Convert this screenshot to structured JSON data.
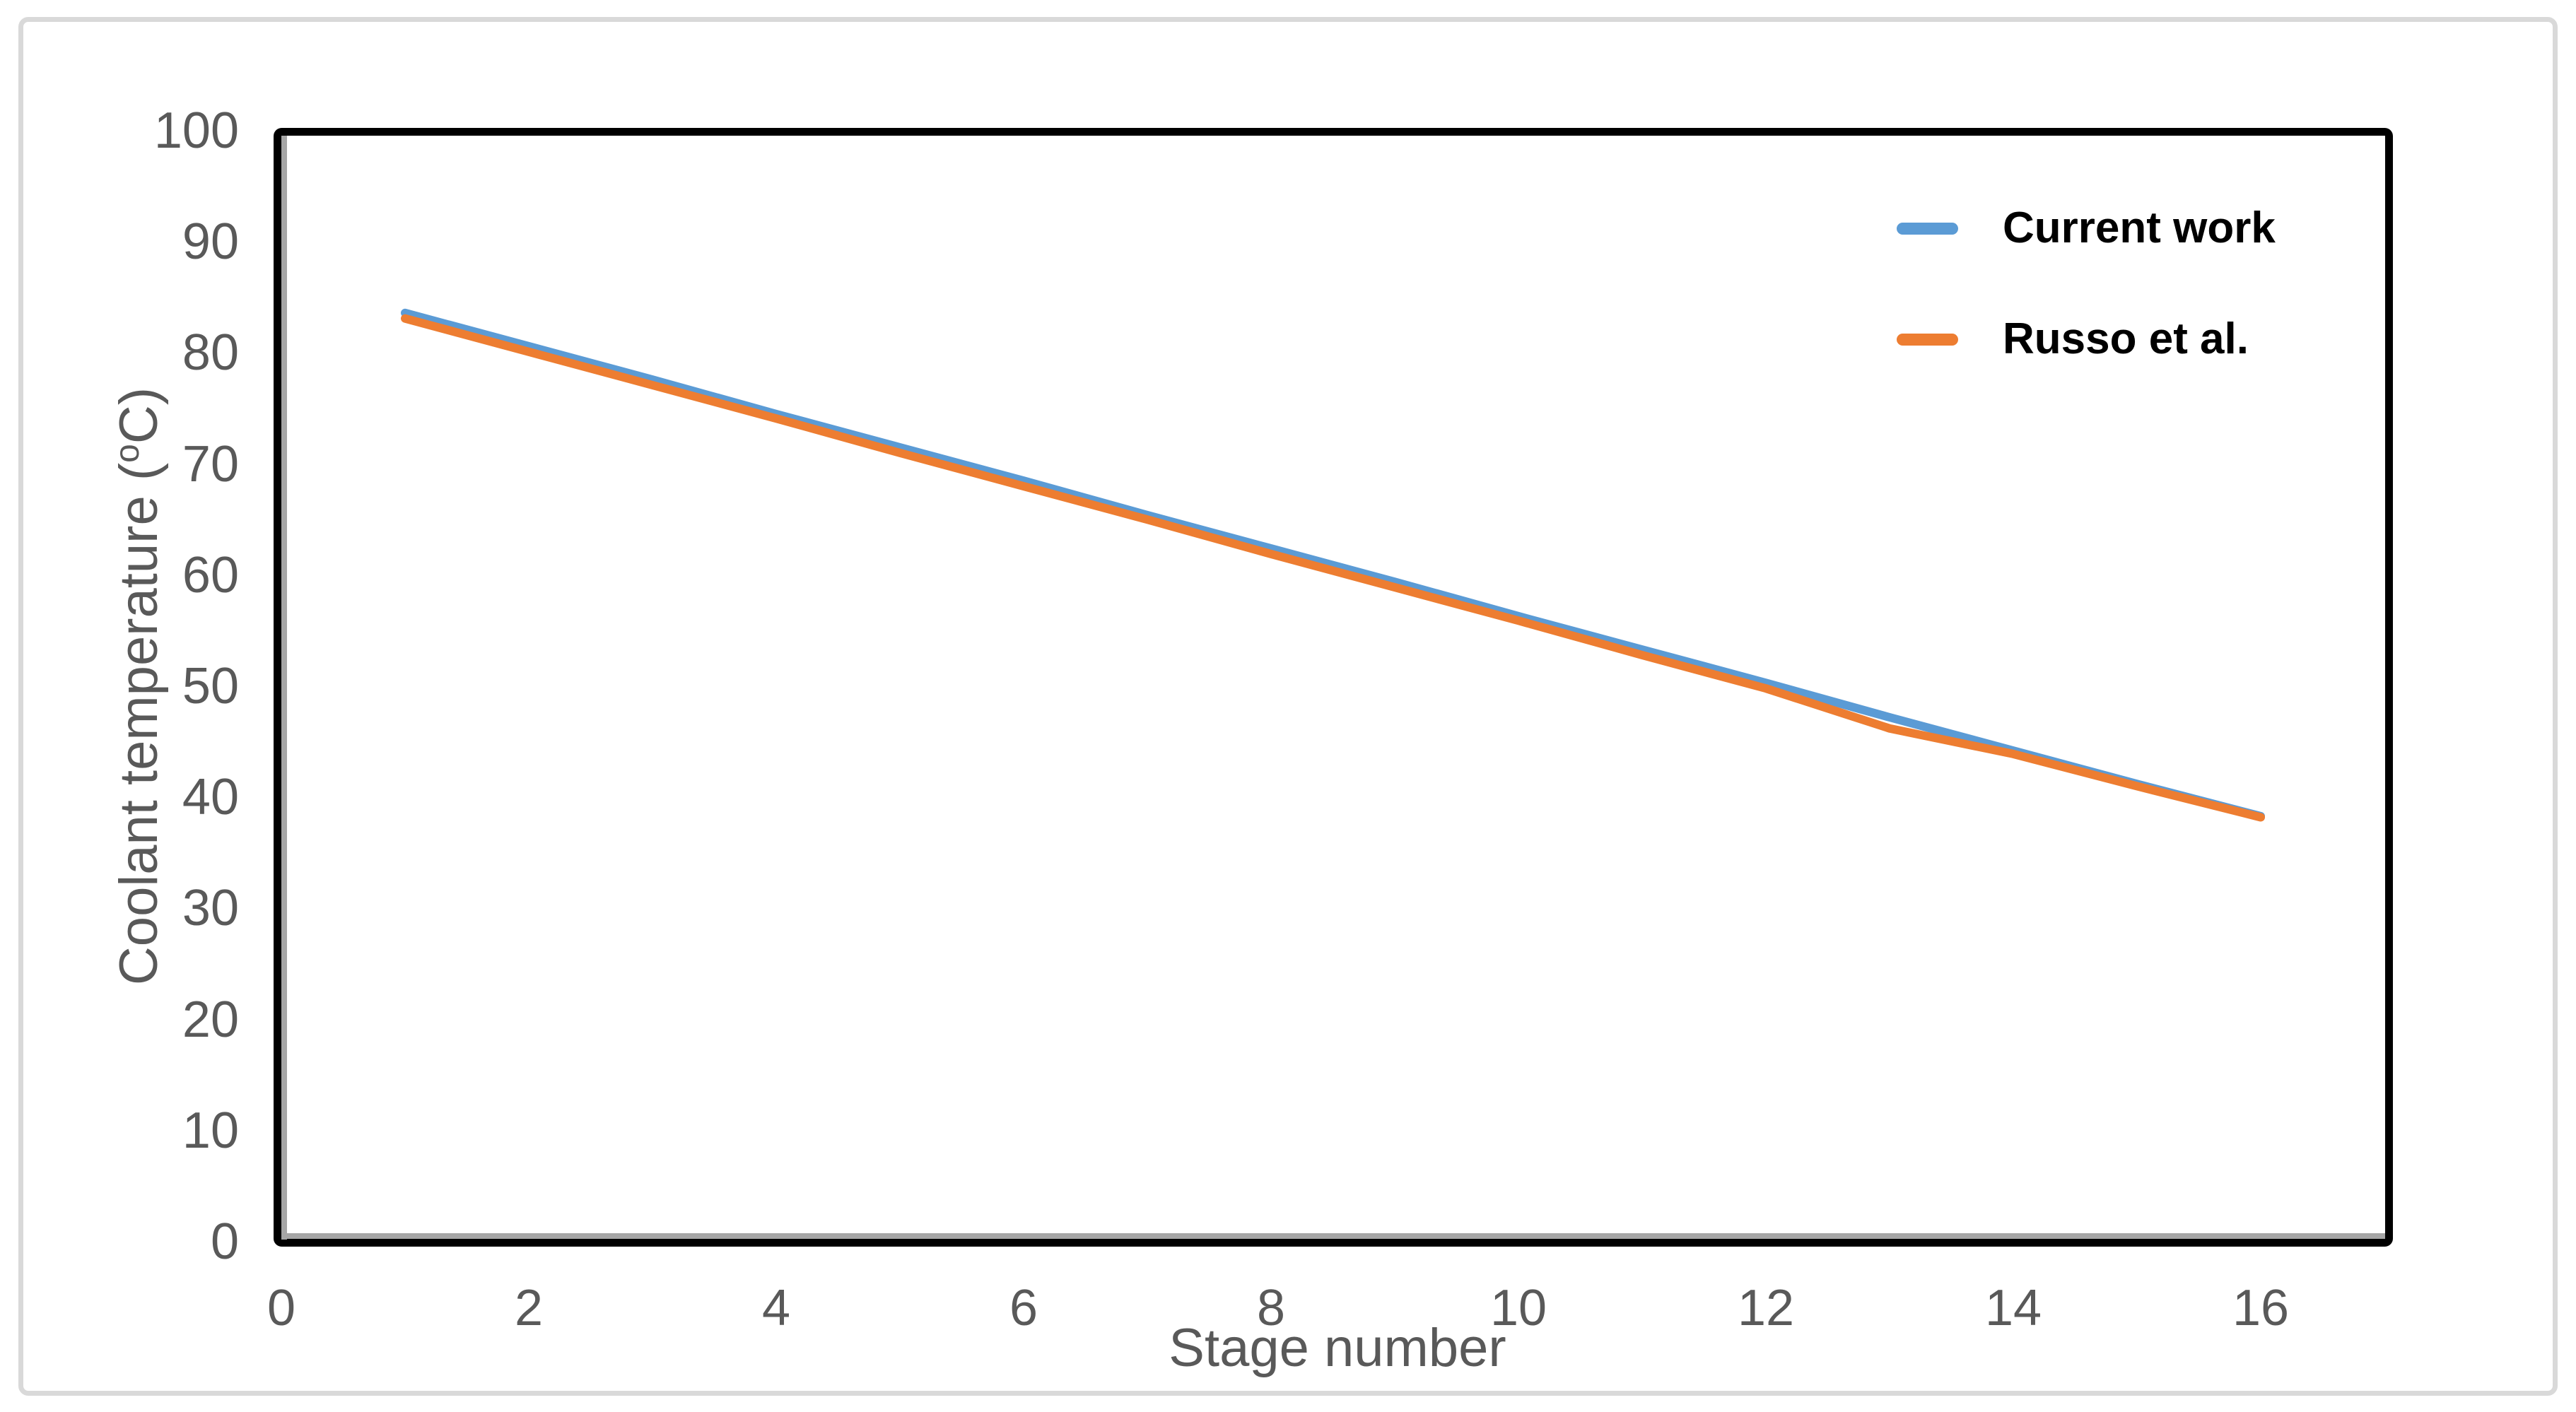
{
  "figure": {
    "background_color": "#FFFFFF",
    "outer_border_color": "#D9D9D9",
    "plot_border_color": "#000000",
    "axis_line_color": "#A6A6A6",
    "axis_text_color": "#595959",
    "legend_text_color": "#000000"
  },
  "y_axis": {
    "title_prefix": "Coolant temperature (",
    "title_sup": "o",
    "title_suffix": "C)",
    "tick_values": [
      0,
      10,
      20,
      30,
      40,
      50,
      60,
      70,
      80,
      90,
      100
    ],
    "tick_labels": [
      "0",
      "10",
      "20",
      "30",
      "40",
      "50",
      "60",
      "70",
      "80",
      "90",
      "100"
    ]
  },
  "x_axis": {
    "title": "Stage number",
    "tick_values": [
      0,
      2,
      4,
      6,
      8,
      10,
      12,
      14,
      16
    ],
    "tick_labels": [
      "0",
      "2",
      "4",
      "6",
      "8",
      "10",
      "12",
      "14",
      "16"
    ]
  },
  "chart_data": {
    "type": "line",
    "title": "",
    "xlabel": "Stage number",
    "ylabel": "Coolant temperature (oC)",
    "xlim": [
      0,
      17
    ],
    "ylim": [
      0,
      100
    ],
    "grid": false,
    "legend_position": "inside-top-right",
    "x": [
      1,
      2,
      3,
      4,
      5,
      6,
      7,
      8,
      9,
      10,
      11,
      12,
      13,
      14,
      15,
      16
    ],
    "series": [
      {
        "name": "Current work",
        "color": "#5B9BD5",
        "values": [
          83.6,
          80.6,
          77.6,
          74.5,
          71.5,
          68.5,
          65.4,
          62.4,
          59.4,
          56.3,
          53.3,
          50.3,
          47.2,
          44.2,
          41.2,
          38.3
        ]
      },
      {
        "name": "Russo et al.",
        "color": "#ED7D31",
        "values": [
          83.1,
          80.1,
          77.1,
          74.1,
          71.0,
          68.0,
          65.0,
          61.9,
          58.9,
          55.9,
          52.8,
          49.8,
          46.2,
          43.9,
          41.0,
          38.2
        ]
      }
    ]
  }
}
